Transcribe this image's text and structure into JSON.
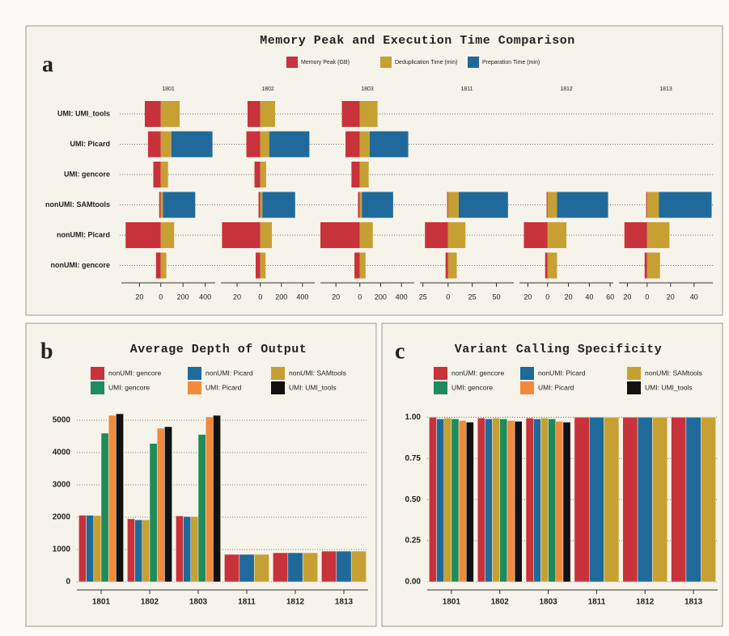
{
  "chart_data": [
    {
      "type": "diverging-bar",
      "label": "a",
      "title": "Memory Peak and Execution Time Comparison",
      "categories": [
        "UMI: UMI_tools",
        "UMI: Picard",
        "UMI: gencore",
        "nonUMI: SAMtools",
        "nonUMI: Picard",
        "nonUMI: gencore"
      ],
      "series": [
        {
          "name": "Memory Peak (GB)",
          "color": "#c8323a"
        },
        {
          "name": "Deduplication Time (min)",
          "color": "#c6a032"
        },
        {
          "name": "Preparation Time (min)",
          "color": "#1f6a9a"
        }
      ],
      "facets": [
        {
          "title": "1801",
          "xlim_left": [
            37,
            0
          ],
          "xlim": [
            0,
            490
          ],
          "xticks_left": [
            20
          ],
          "xticks": [
            0,
            200,
            400
          ],
          "values": [
            [
              15,
              12,
              7,
              1.5,
              33,
              4.5
            ],
            [
              170,
              95,
              65,
              20,
              120,
              50
            ],
            [
              null,
              370,
              null,
              290,
              null,
              null
            ]
          ]
        },
        {
          "title": "1802",
          "xlim_left": [
            34,
            0
          ],
          "xlim": [
            0,
            516
          ],
          "xticks_left": [
            20
          ],
          "xticks": [
            0,
            200,
            400
          ],
          "values": [
            [
              11,
              12,
              5,
              1.5,
              33,
              4
            ],
            [
              140,
              85,
              55,
              20,
              110,
              50
            ],
            [
              null,
              380,
              null,
              310,
              null,
              null
            ]
          ]
        },
        {
          "title": "1803",
          "xlim_left": [
            33,
            0
          ],
          "xlim": [
            0,
            523
          ],
          "xticks_left": [
            20
          ],
          "xticks": [
            0,
            200,
            400
          ],
          "values": [
            [
              15,
              12,
              7,
              1.5,
              33,
              4.5
            ],
            [
              170,
              95,
              85,
              20,
              125,
              55
            ],
            [
              null,
              370,
              null,
              300,
              null,
              null
            ]
          ]
        },
        {
          "title": "1811",
          "xlim_left": [
            28,
            0
          ],
          "xlim": [
            0,
            68
          ],
          "xticks_left": [
            25
          ],
          "xticks": [
            0,
            25,
            50
          ],
          "values": [
            [
              null,
              null,
              null,
              1,
              23,
              2.5
            ],
            [
              null,
              null,
              null,
              11,
              18,
              9
            ],
            [
              null,
              null,
              null,
              51,
              null,
              null
            ]
          ]
        },
        {
          "title": "1812",
          "xlim_left": [
            28.5,
            0
          ],
          "xlim": [
            0,
            63
          ],
          "xticks_left": [
            20
          ],
          "xticks": [
            0,
            20,
            40,
            60
          ],
          "values": [
            [
              null,
              null,
              null,
              1,
              24,
              2.5
            ],
            [
              null,
              null,
              null,
              9,
              18,
              9
            ],
            [
              null,
              null,
              null,
              49,
              null,
              null
            ]
          ]
        },
        {
          "title": "1813",
          "xlim_left": [
            28.5,
            0
          ],
          "xlim": [
            0,
            56
          ],
          "xticks_left": [
            20
          ],
          "xticks": [
            0,
            20,
            40
          ],
          "values": [
            [
              null,
              null,
              null,
              1,
              23,
              2.5
            ],
            [
              null,
              null,
              null,
              10,
              19,
              11
            ],
            [
              null,
              null,
              null,
              45,
              null,
              null
            ]
          ]
        }
      ]
    },
    {
      "type": "bar",
      "label": "b",
      "title": "Average Depth of Output",
      "categories": [
        "1801",
        "1802",
        "1803",
        "1811",
        "1812",
        "1813"
      ],
      "ylim": [
        0,
        5500
      ],
      "yticks": [
        0,
        1000,
        2000,
        3000,
        4000,
        5000
      ],
      "grid": true,
      "series": [
        {
          "name": "nonUMI: gencore",
          "color": "#c8323a",
          "values": [
            2060,
            1950,
            2040,
            850,
            900,
            950
          ]
        },
        {
          "name": "nonUMI: Picard",
          "color": "#1f6a9a",
          "values": [
            2060,
            1920,
            2020,
            850,
            900,
            950
          ]
        },
        {
          "name": "nonUMI: SAMtools",
          "color": "#c6a032",
          "values": [
            2050,
            1920,
            2020,
            850,
            900,
            950
          ]
        },
        {
          "name": "UMI: gencore",
          "color": "#1f8a5a",
          "values": [
            4600,
            4280,
            4560,
            null,
            null,
            null
          ]
        },
        {
          "name": "UMI: Picard",
          "color": "#f08a3c",
          "values": [
            5150,
            4750,
            5100,
            null,
            null,
            null
          ]
        },
        {
          "name": "UMI: UMI_tools",
          "color": "#111111",
          "values": [
            5200,
            4800,
            5150,
            null,
            null,
            null
          ]
        }
      ]
    },
    {
      "type": "bar",
      "label": "c",
      "title": "Variant Calling Specificity",
      "categories": [
        "1801",
        "1802",
        "1803",
        "1811",
        "1812",
        "1813"
      ],
      "ylim": [
        0,
        1.08
      ],
      "yticks": [
        {
          "value": 0,
          "label": "0.00"
        },
        0.25,
        {
          "value": 0.5,
          "label": "0.50"
        },
        0.75,
        {
          "value": 1,
          "label": "1.00"
        }
      ],
      "grid": true,
      "series": [
        {
          "name": "nonUMI: gencore",
          "color": "#c8323a",
          "values": [
            1.0,
            0.995,
            0.995,
            1.0,
            1.0,
            1.0
          ]
        },
        {
          "name": "nonUMI: Picard",
          "color": "#1f6a9a",
          "values": [
            0.99,
            0.99,
            0.99,
            1.0,
            1.0,
            1.0
          ]
        },
        {
          "name": "nonUMI: SAMtools",
          "color": "#c6a032",
          "values": [
            0.995,
            0.995,
            0.995,
            1.0,
            1.0,
            1.0
          ]
        },
        {
          "name": "UMI: gencore",
          "color": "#1f8a5a",
          "values": [
            0.99,
            0.99,
            0.99,
            null,
            null,
            null
          ]
        },
        {
          "name": "UMI: Picard",
          "color": "#f08a3c",
          "values": [
            0.98,
            0.98,
            0.975,
            null,
            null,
            null
          ]
        },
        {
          "name": "UMI: UMI_tools",
          "color": "#111111",
          "values": [
            0.97,
            0.975,
            0.97,
            null,
            null,
            null
          ]
        }
      ]
    }
  ]
}
